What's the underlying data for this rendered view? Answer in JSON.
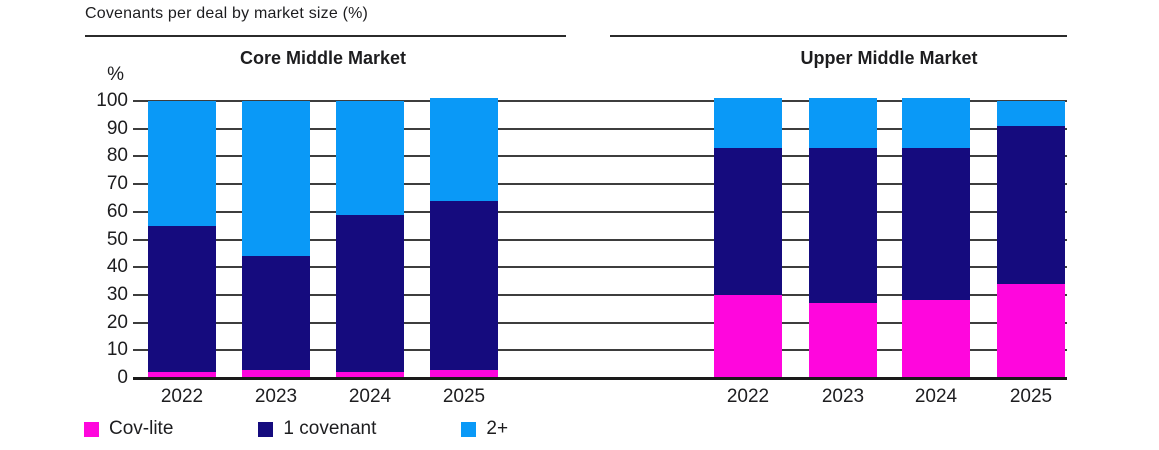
{
  "header": {
    "title": "Covenants per deal by market size (%)"
  },
  "chart_data": {
    "type": "bar",
    "stacked": true,
    "title": "Covenants per deal by market size (%)",
    "ylabel": "%",
    "ylim": [
      0,
      100
    ],
    "yticks": [
      0,
      10,
      20,
      30,
      40,
      50,
      60,
      70,
      80,
      90,
      100
    ],
    "grid": true,
    "legend_position": "bottom",
    "legend": [
      "Cov-lite",
      "1 covenant",
      "2+"
    ],
    "colors": {
      "Cov-lite": "#ff06dd",
      "1 covenant": "#150b7e",
      "2+": "#0a99f7"
    },
    "panels": [
      {
        "title": "Core Middle Market",
        "categories": [
          "2022",
          "2023",
          "2024",
          "2025"
        ],
        "series": [
          {
            "name": "Cov-lite",
            "values": [
              2,
              3,
              2,
              3
            ]
          },
          {
            "name": "1 covenant",
            "values": [
              53,
              41,
              57,
              61
            ]
          },
          {
            "name": "2+",
            "values": [
              45,
              56,
              41,
              37
            ]
          }
        ]
      },
      {
        "title": "Upper Middle Market",
        "categories": [
          "2022",
          "2023",
          "2024",
          "2025"
        ],
        "series": [
          {
            "name": "Cov-lite",
            "values": [
              30,
              27,
              28,
              34
            ]
          },
          {
            "name": "1 covenant",
            "values": [
              53,
              56,
              55,
              57
            ]
          },
          {
            "name": "2+",
            "values": [
              18,
              18,
              18,
              9
            ]
          }
        ]
      }
    ]
  }
}
